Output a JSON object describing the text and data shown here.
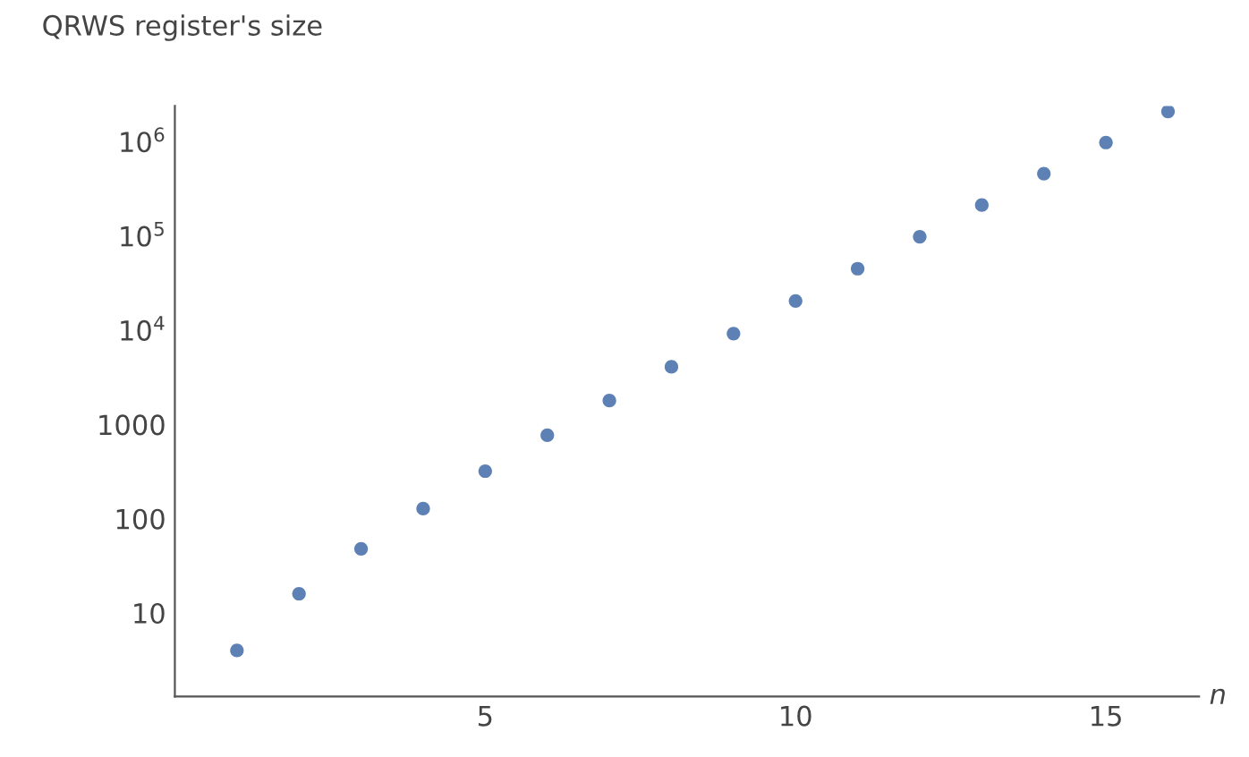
{
  "chart_data": {
    "type": "scatter",
    "ylabel": "QRWS register's size",
    "xlabel": "n",
    "x": [
      1,
      2,
      3,
      4,
      5,
      6,
      7,
      8,
      9,
      10,
      11,
      12,
      13,
      14,
      15,
      16
    ],
    "series": [
      {
        "color": "#5e81b5",
        "values": [
          4,
          16,
          48,
          128,
          320,
          768,
          1792,
          4096,
          9216,
          20480,
          45056,
          98304,
          212992,
          458752,
          983040,
          2097152
        ]
      }
    ],
    "log": "y",
    "marker": "circle",
    "grid": false,
    "legend": false,
    "xlim": [
      0,
      16.5
    ],
    "xticks": [
      5,
      10,
      15
    ],
    "ylim": [
      1.3,
      2400000.0
    ],
    "yticks": [
      10,
      100,
      1000,
      {
        "value": 10000,
        "label": "10$^{4}$"
      },
      {
        "value": 100000,
        "label": "10$^{5}$"
      },
      {
        "value": 1000000,
        "label": "10$^{6}$"
      }
    ]
  }
}
